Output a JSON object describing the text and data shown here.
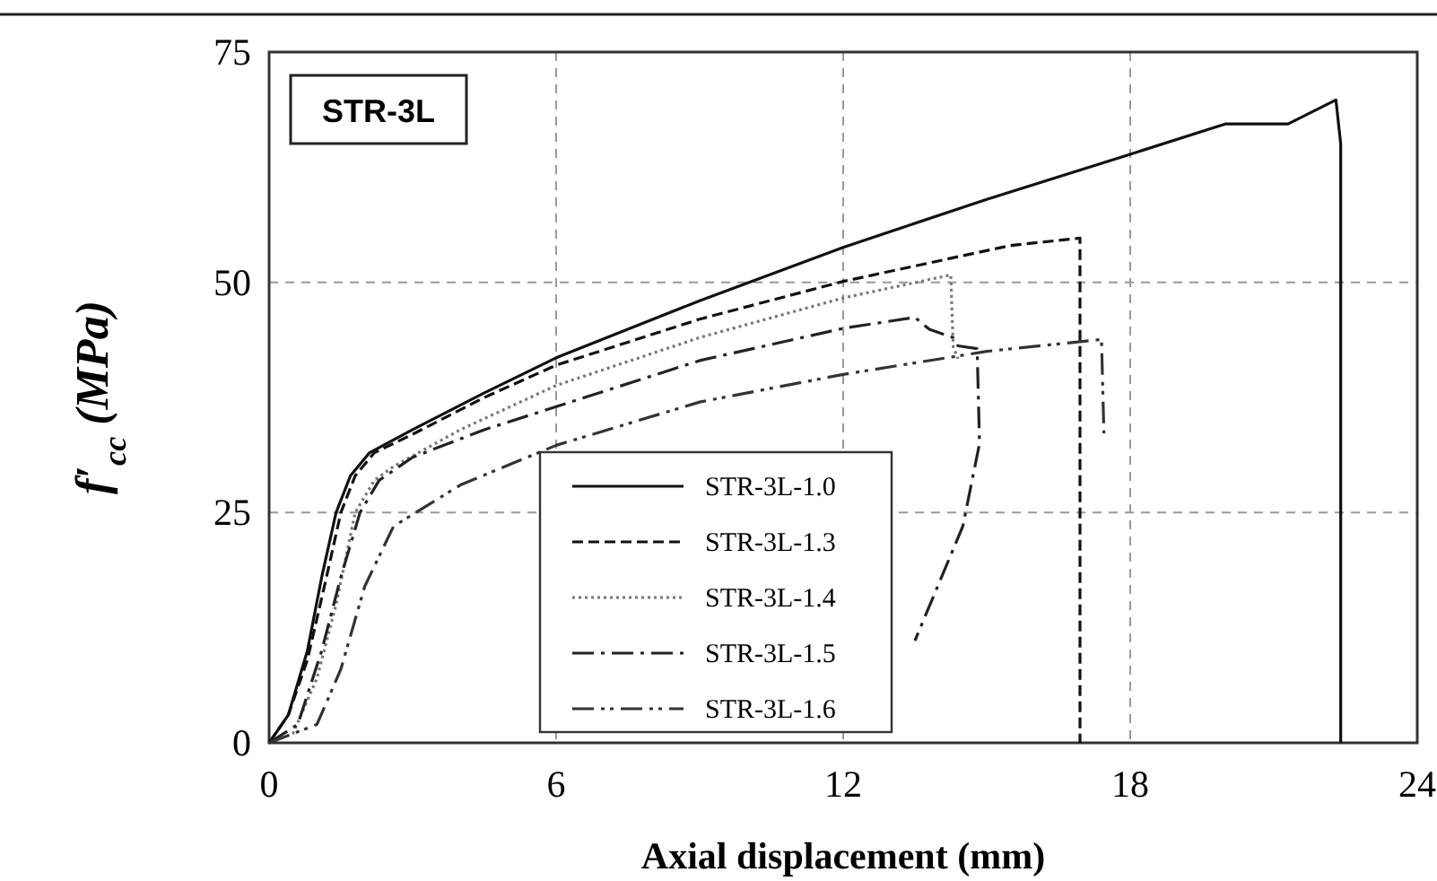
{
  "chart_data": {
    "type": "line",
    "xlabel": "Axial displacement (mm)",
    "ylabel": "f′$_{cc}$ (MPa)",
    "annotations": [
      "STR-3L"
    ],
    "xlim": [
      0,
      24
    ],
    "xticks": [
      0,
      6,
      12,
      18,
      24
    ],
    "ylim": [
      0,
      75
    ],
    "yticks": [
      0,
      25,
      50,
      75
    ],
    "grid": true,
    "legend": "bottom",
    "series": [
      {
        "name": "STR-3L-1.0",
        "color": "#111111",
        "line_style": "solid",
        "x": [
          0,
          0.4,
          0.8,
          1.1,
          1.4,
          1.7,
          2.1,
          3,
          4.5,
          6,
          9,
          12,
          15,
          18,
          20,
          21.3,
          22.3,
          22.4,
          22.4
        ],
        "values": [
          0,
          3,
          10,
          18,
          25,
          29,
          31.5,
          34,
          38,
          41.8,
          48,
          53.8,
          59,
          63.9,
          67.2,
          67.2,
          69.8,
          65,
          0
        ]
      },
      {
        "name": "STR-3L-1.3",
        "color": "#111111",
        "line_style": "dashed",
        "x": [
          0,
          0.4,
          0.8,
          1.2,
          1.5,
          1.8,
          2.2,
          3,
          4.5,
          6,
          9,
          12,
          15.5,
          16.95,
          16.95
        ],
        "values": [
          0,
          3,
          9,
          18,
          25,
          29,
          31.5,
          33.5,
          37.5,
          41,
          46,
          50.1,
          54,
          54.8,
          0
        ]
      },
      {
        "name": "STR-3L-1.4",
        "color": "#777777",
        "line_style": "dotted",
        "x": [
          0,
          0.5,
          1,
          1.4,
          1.8,
          2.2,
          2.6,
          4,
          6,
          9,
          12,
          14.25,
          14.3,
          14.4
        ],
        "values": [
          0,
          1,
          7,
          15,
          25,
          28.5,
          30,
          34,
          38.8,
          44,
          48.3,
          50.8,
          43,
          41.7
        ]
      },
      {
        "name": "STR-3L-1.5",
        "color": "#222222",
        "line_style": "dashdot",
        "x": [
          0,
          0.6,
          1.1,
          1.5,
          1.9,
          2.3,
          3,
          4.5,
          6,
          9,
          12,
          13.5,
          13.8,
          14.3,
          14.4,
          14.8,
          14.85,
          14.5,
          13.5
        ],
        "values": [
          0,
          2,
          10,
          18,
          25,
          28.5,
          31,
          34,
          36.5,
          41.5,
          45,
          46.2,
          44.9,
          44,
          43.1,
          42.8,
          32.5,
          23.5,
          11.1
        ]
      },
      {
        "name": "STR-3L-1.6",
        "color": "#333333",
        "line_style": "dashdotdot",
        "x": [
          0,
          1,
          1.5,
          2,
          2.6,
          4,
          6,
          9,
          12,
          15,
          17.4,
          17.45
        ],
        "values": [
          0,
          2,
          8,
          17,
          23.5,
          28,
          32.3,
          37,
          40,
          42.5,
          43.8,
          33.6
        ]
      }
    ]
  }
}
